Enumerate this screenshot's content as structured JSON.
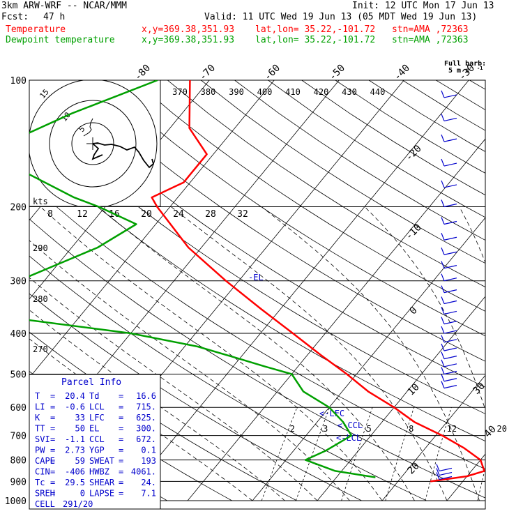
{
  "header": {
    "model": "3km ARW-WRF -- NCAR/MMM",
    "init": "Init: 12 UTC Mon 17 Jun 13",
    "fcst_label": "Fcst:",
    "fcst_hours": "47 h",
    "valid": "Valid: 11 UTC Wed 19 Jun 13 (05 MDT Wed 19 Jun 13)",
    "temp_label": "Temperature",
    "dew_label": "Dewpoint temperature",
    "xy": "x,y=369.38,351.93",
    "latlon": "lat,lon= 35.22,-101.72",
    "stn": "stn=AMA ,72363",
    "barb_title": "Full barb:",
    "barb_unit": "5 m s",
    "barb_unit_sup": "-1"
  },
  "chart_data": {
    "type": "skew-t",
    "pressure_levels": [
      100,
      200,
      300,
      400,
      500,
      600,
      700,
      800,
      900,
      1000
    ],
    "temperature_ticks": [
      -80,
      -70,
      -60,
      -50,
      -40,
      -30,
      -20,
      -10,
      0,
      10,
      20,
      30,
      40
    ],
    "theta_labels": [
      270,
      280,
      290
    ],
    "theta_e_labels": [
      370,
      380,
      390,
      400,
      410,
      420,
      430,
      440
    ],
    "mixing_ratio_labels": [
      2,
      3,
      5,
      8,
      12,
      20
    ],
    "series": [
      {
        "name": "Temperature",
        "color": "#ff0000",
        "p": [
          100,
          130,
          150,
          175,
          190,
          200,
          250,
          300,
          350,
          400,
          450,
          500,
          550,
          600,
          650,
          700,
          750,
          800,
          850,
          875,
          900
        ],
        "t": [
          -73,
          -67,
          -61,
          -61,
          -64,
          -62,
          -52,
          -42,
          -33,
          -25,
          -18,
          -11.5,
          -6,
          0,
          5,
          11,
          16,
          20,
          22,
          20,
          15
        ]
      },
      {
        "name": "Dewpoint temperature",
        "color": "#00a000",
        "p": [
          100,
          120,
          140,
          165,
          190,
          200,
          220,
          250,
          300,
          350,
          400,
          430,
          460,
          480,
          500,
          550,
          600,
          650,
          700,
          760,
          800,
          850,
          880
        ],
        "t": [
          -78,
          -87,
          -93,
          -87,
          -76,
          -71,
          -63,
          -66,
          -74,
          -82,
          -50,
          -38,
          -30,
          -25,
          -20,
          -16,
          -10,
          -6,
          -3,
          -5,
          -7,
          -1,
          6
        ]
      }
    ],
    "parcel_levels": [
      "EL",
      "LFC",
      "CCL",
      "LCL"
    ],
    "wind_barb_pressures": [
      110,
      125,
      140,
      160,
      180,
      200,
      220,
      240,
      260,
      280,
      300,
      320,
      340,
      360,
      380,
      400,
      420,
      440,
      460,
      480,
      500,
      520,
      540,
      850,
      870,
      890
    ],
    "hodograph": {
      "ring_labels_kts": [
        5,
        10,
        15
      ],
      "axis_label": "kts",
      "speed_ticks": [
        8,
        12,
        16,
        20,
        24,
        28,
        32
      ]
    }
  },
  "parcel_info": {
    "title": "Parcel Info",
    "rows": [
      [
        "T",
        "20.4",
        "Td",
        "16.6"
      ],
      [
        "LI",
        "-0.6",
        "LCL",
        "715."
      ],
      [
        "K",
        "33",
        "LFC",
        "625."
      ],
      [
        "TT",
        "50",
        "EL",
        "300."
      ],
      [
        "SVI",
        "-1.1",
        "CCL",
        "672."
      ],
      [
        "PW",
        "2.73",
        "YGP",
        "0.1"
      ],
      [
        "CAPE",
        "59",
        "SWEAT",
        "193"
      ],
      [
        "CIN",
        "-406",
        "HWBZ",
        "4061."
      ],
      [
        "Tc",
        "29.5",
        "SHEAR",
        "24."
      ],
      [
        "SREH",
        "0",
        "LAPSE",
        "7.1"
      ]
    ],
    "cell_label": "CELL",
    "cell_value": "291/20"
  },
  "colors": {
    "temperature": "#ff0000",
    "dewpoint": "#00a000",
    "parcel_text": "#0000cc",
    "barbs": "#0000cc"
  }
}
